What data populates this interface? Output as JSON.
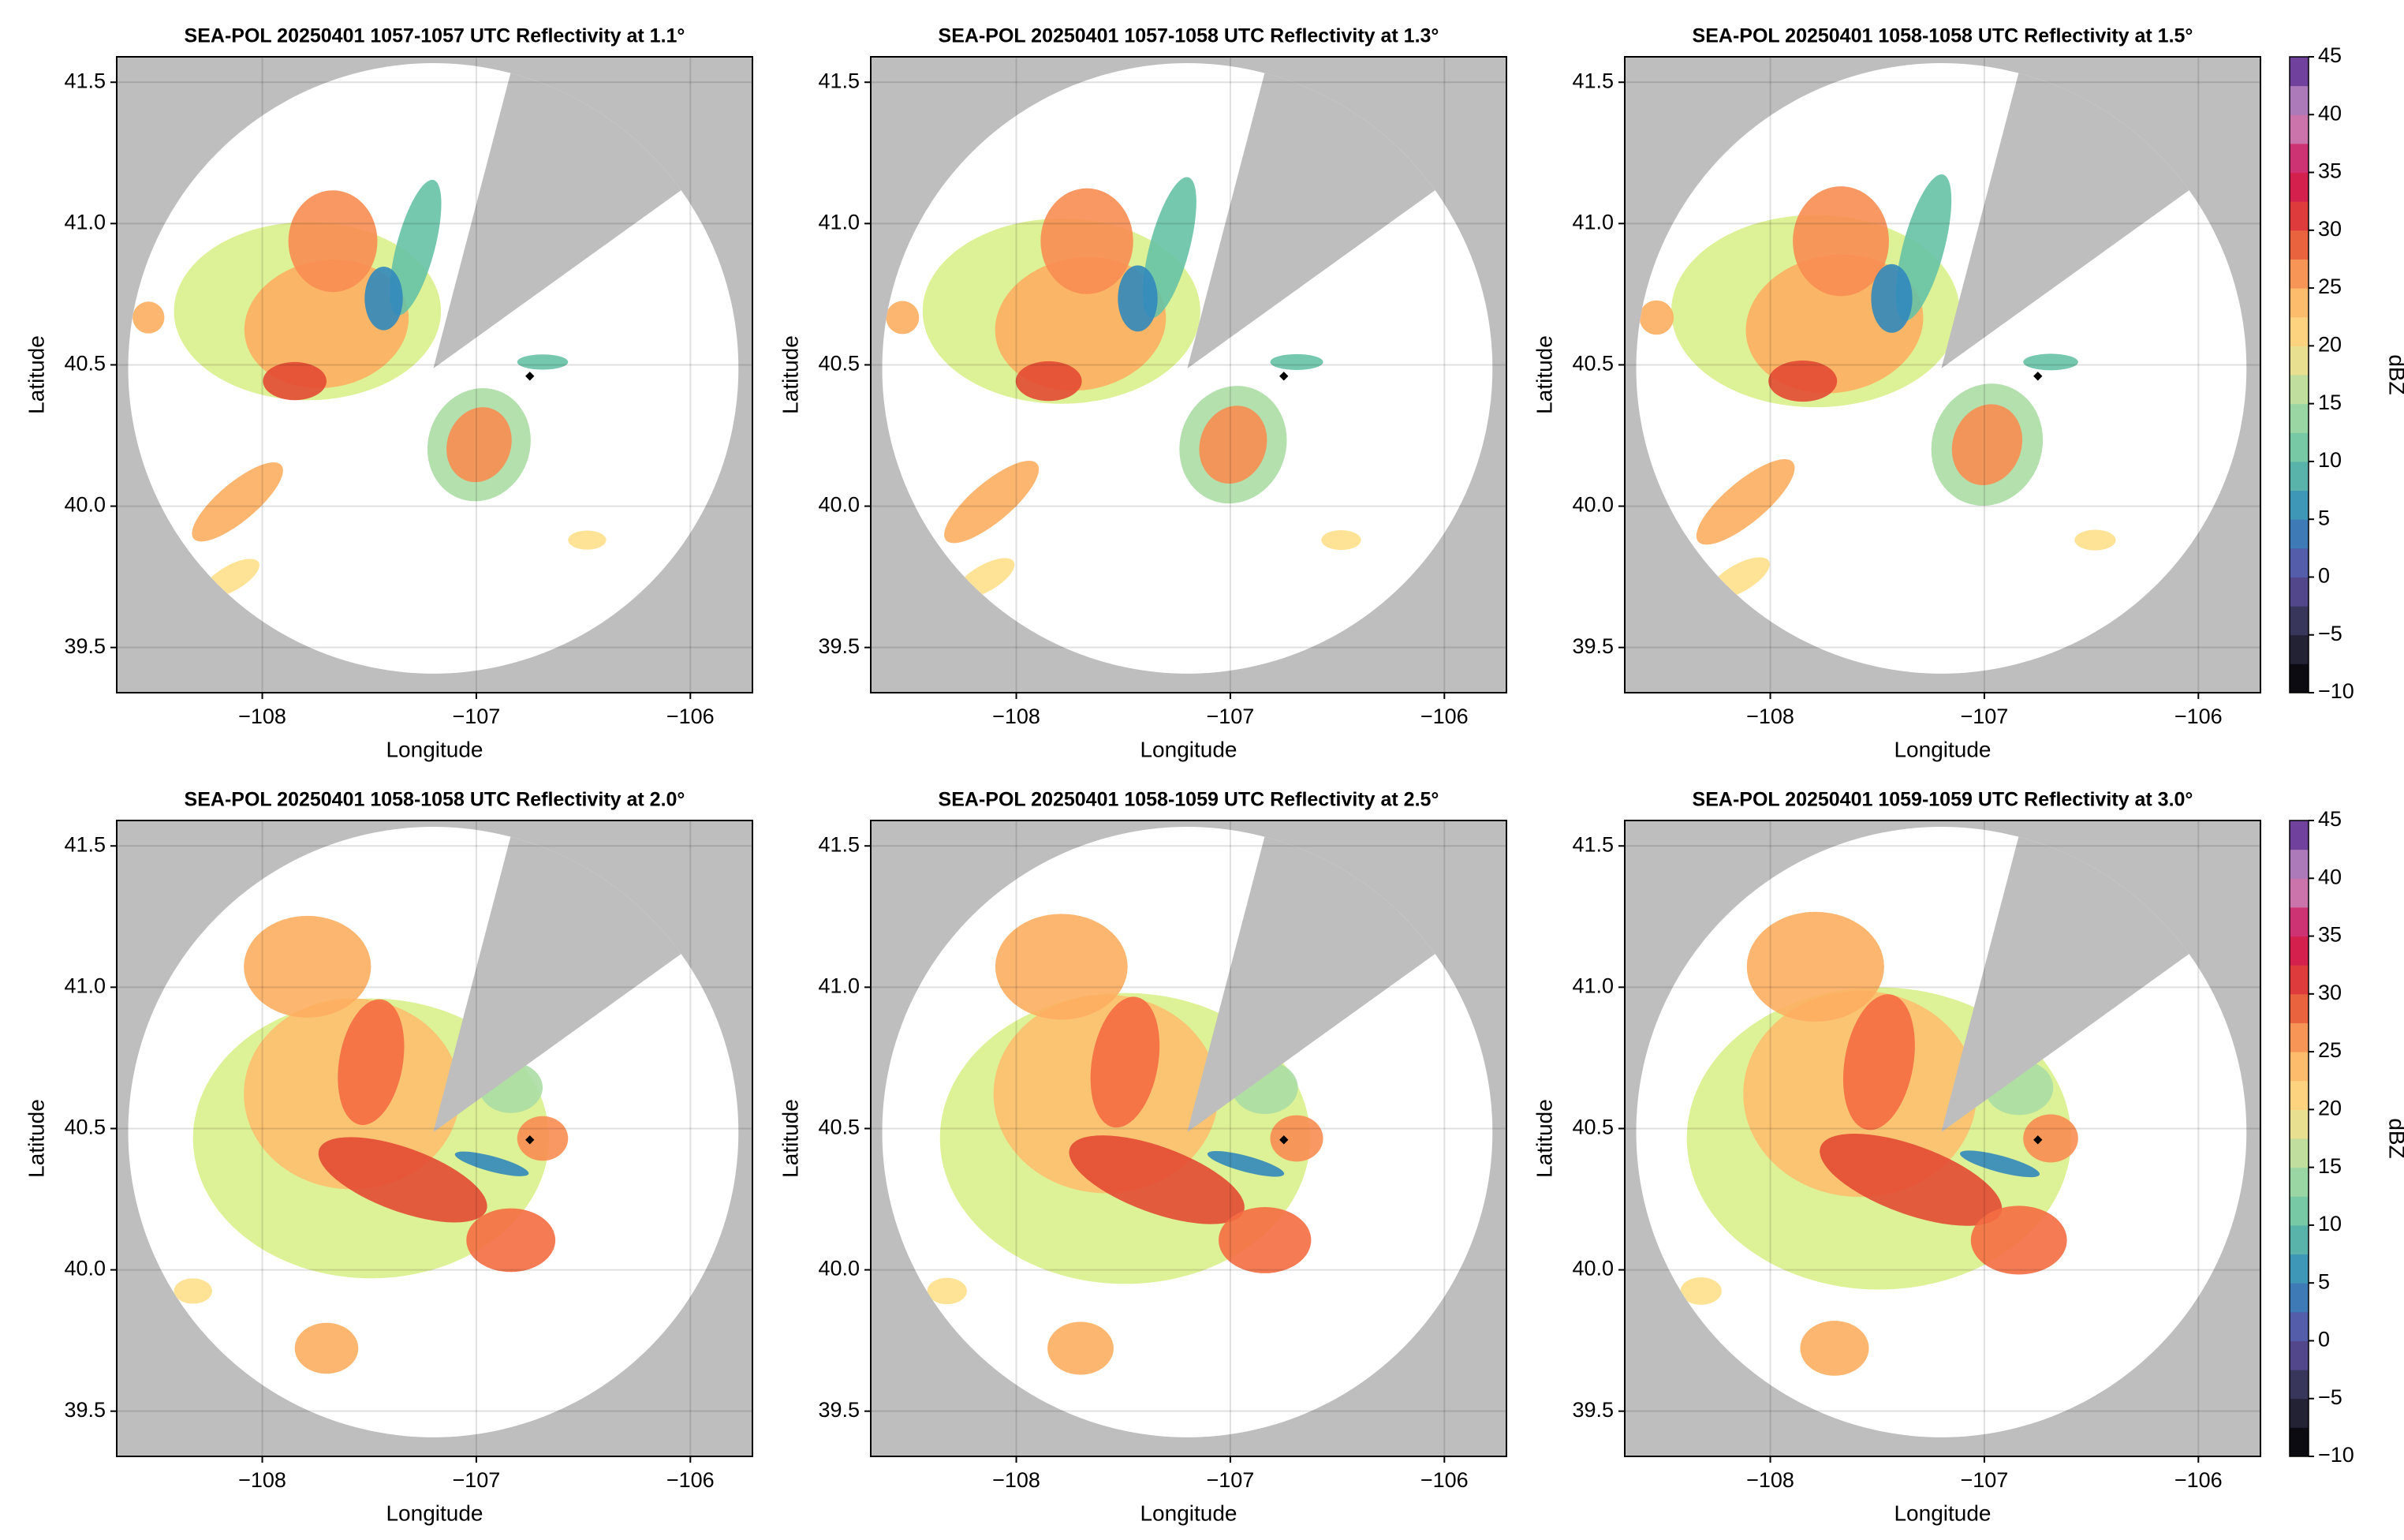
{
  "chart_data": [
    {
      "type": "radar",
      "title": "SEA-POL 20250401 1057-1057 UTC Reflectivity at 1.1°",
      "xlabel": "Longitude",
      "ylabel": "Latitude",
      "xlim": [
        -108.68,
        -105.71
      ],
      "ylim": [
        39.34,
        41.59
      ],
      "xticks": [
        {
          "value": -108,
          "label": "−108"
        },
        {
          "value": -107,
          "label": "−107"
        },
        {
          "value": -106,
          "label": "−106"
        }
      ],
      "yticks": [
        39.5,
        {
          "value": 40,
          "label": "40.0"
        },
        40.5,
        {
          "value": 41,
          "label": "41.0"
        },
        41.5
      ],
      "grid": true,
      "point": {
        "x": -106.75,
        "y": 40.46
      }
    },
    {
      "type": "radar",
      "title": "SEA-POL 20250401 1057-1058 UTC Reflectivity at 1.3°",
      "xlabel": "Longitude",
      "ylabel": "Latitude",
      "xlim": [
        -108.68,
        -105.71
      ],
      "ylim": [
        39.34,
        41.59
      ],
      "xticks": [
        {
          "value": -108,
          "label": "−108"
        },
        {
          "value": -107,
          "label": "−107"
        },
        {
          "value": -106,
          "label": "−106"
        }
      ],
      "yticks": [
        39.5,
        {
          "value": 40,
          "label": "40.0"
        },
        40.5,
        {
          "value": 41,
          "label": "41.0"
        },
        41.5
      ],
      "grid": true,
      "point": {
        "x": -106.75,
        "y": 40.46
      }
    },
    {
      "type": "radar",
      "title": "SEA-POL 20250401 1058-1058 UTC Reflectivity at 1.5°",
      "xlabel": "Longitude",
      "ylabel": "Latitude",
      "xlim": [
        -108.68,
        -105.71
      ],
      "ylim": [
        39.34,
        41.59
      ],
      "xticks": [
        {
          "value": -108,
          "label": "−108"
        },
        {
          "value": -107,
          "label": "−107"
        },
        {
          "value": -106,
          "label": "−106"
        }
      ],
      "yticks": [
        39.5,
        {
          "value": 40,
          "label": "40.0"
        },
        40.5,
        {
          "value": 41,
          "label": "41.0"
        },
        41.5
      ],
      "grid": true,
      "point": {
        "x": -106.75,
        "y": 40.46
      },
      "colorbar": {
        "label": "dBZ",
        "lim": [
          -10,
          45
        ],
        "ticks": [
          {
            "value": -10,
            "label": "−10"
          },
          {
            "value": -5,
            "label": "−5"
          },
          0,
          5,
          10,
          15,
          20,
          25,
          30,
          35,
          40,
          45
        ],
        "colors": [
          "#000000",
          "#2d2d45",
          "#5e4fa2",
          "#3288bd",
          "#66c2a5",
          "#abdda4",
          "#fee08b",
          "#fdae61",
          "#e34a33",
          "#ce1256",
          "#c994c7",
          "#54278f"
        ]
      }
    },
    {
      "type": "radar",
      "title": "SEA-POL 20250401 1058-1058 UTC Reflectivity at 2.0°",
      "xlabel": "Longitude",
      "ylabel": "Latitude",
      "xlim": [
        -108.68,
        -105.71
      ],
      "ylim": [
        39.34,
        41.59
      ],
      "xticks": [
        {
          "value": -108,
          "label": "−108"
        },
        {
          "value": -107,
          "label": "−107"
        },
        {
          "value": -106,
          "label": "−106"
        }
      ],
      "yticks": [
        39.5,
        {
          "value": 40,
          "label": "40.0"
        },
        40.5,
        {
          "value": 41,
          "label": "41.0"
        },
        41.5
      ],
      "grid": true,
      "point": {
        "x": -106.75,
        "y": 40.46
      }
    },
    {
      "type": "radar",
      "title": "SEA-POL 20250401 1058-1059 UTC Reflectivity at 2.5°",
      "xlabel": "Longitude",
      "ylabel": "Latitude",
      "xlim": [
        -108.68,
        -105.71
      ],
      "ylim": [
        39.34,
        41.59
      ],
      "xticks": [
        {
          "value": -108,
          "label": "−108"
        },
        {
          "value": -107,
          "label": "−107"
        },
        {
          "value": -106,
          "label": "−106"
        }
      ],
      "yticks": [
        39.5,
        {
          "value": 40,
          "label": "40.0"
        },
        40.5,
        {
          "value": 41,
          "label": "41.0"
        },
        41.5
      ],
      "grid": true,
      "point": {
        "x": -106.75,
        "y": 40.46
      }
    },
    {
      "type": "radar",
      "title": "SEA-POL 20250401 1059-1059 UTC Reflectivity at 3.0°",
      "xlabel": "Longitude",
      "ylabel": "Latitude",
      "xlim": [
        -108.68,
        -105.71
      ],
      "ylim": [
        39.34,
        41.59
      ],
      "xticks": [
        {
          "value": -108,
          "label": "−108"
        },
        {
          "value": -107,
          "label": "−107"
        },
        {
          "value": -106,
          "label": "−106"
        }
      ],
      "yticks": [
        39.5,
        {
          "value": 40,
          "label": "40.0"
        },
        40.5,
        {
          "value": 41,
          "label": "41.0"
        },
        41.5
      ],
      "grid": true,
      "point": {
        "x": -106.75,
        "y": 40.46
      },
      "colorbar": {
        "label": "dBZ",
        "lim": [
          -10,
          45
        ],
        "ticks": [
          {
            "value": -10,
            "label": "−10"
          },
          {
            "value": -5,
            "label": "−5"
          },
          0,
          5,
          10,
          15,
          20,
          25,
          30,
          35,
          40,
          45
        ],
        "colors": [
          "#000000",
          "#2d2d45",
          "#5e4fa2",
          "#3288bd",
          "#66c2a5",
          "#abdda4",
          "#fee08b",
          "#fdae61",
          "#e34a33",
          "#ce1256",
          "#c994c7",
          "#54278f"
        ]
      }
    }
  ]
}
